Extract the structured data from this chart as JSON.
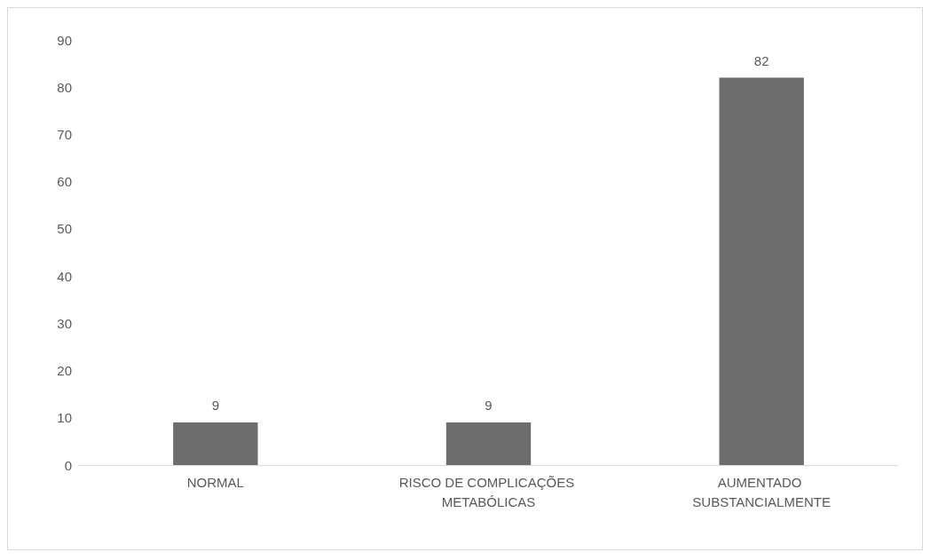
{
  "chart_data": {
    "type": "bar",
    "categories": [
      "NORMAL",
      "RISCO DE COMPLICAÇÕES METABÓLICAS",
      "AUMENTADO SUBSTANCIALMENTE"
    ],
    "values": [
      9,
      9,
      82
    ],
    "color": "#6d6d6d",
    "ylim": [
      0,
      90
    ],
    "yticks": [
      0,
      10,
      20,
      30,
      40,
      50,
      60,
      70,
      80,
      90
    ],
    "data_labels": true
  }
}
